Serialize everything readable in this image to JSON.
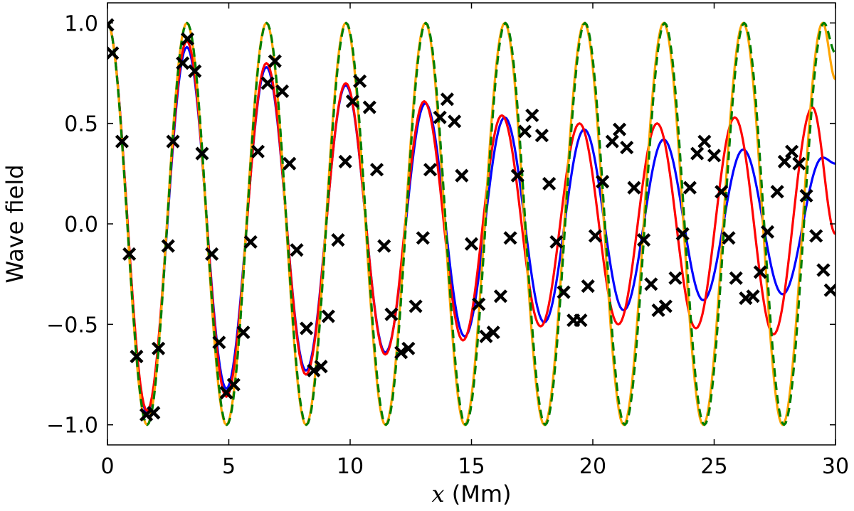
{
  "chart_data": {
    "type": "line",
    "title": "",
    "xlabel_var": "x",
    "xlabel_unit": " (Mm)",
    "ylabel": "Wave field",
    "xlim": [
      0,
      30
    ],
    "ylim": [
      -1.1,
      1.1
    ],
    "xticks": [
      0,
      5,
      10,
      15,
      20,
      25,
      30
    ],
    "xtick_labels": [
      "0",
      "5",
      "10",
      "15",
      "20",
      "25",
      "30"
    ],
    "yticks": [
      -1.0,
      -0.5,
      0.0,
      0.5,
      1.0
    ],
    "ytick_labels": [
      "−1.0",
      "−0.5",
      "0.0",
      "0.5",
      "1.0"
    ],
    "grid": false,
    "legend": "none",
    "series": [
      {
        "color": "#0000ff",
        "style": "solid",
        "x": [
          0,
          1.63,
          3.27,
          4.9,
          6.55,
          8.18,
          9.82,
          11.45,
          13.1,
          14.72,
          16.37,
          18.0,
          19.65,
          21.27,
          22.92,
          24.55,
          26.2,
          27.82,
          29.47,
          30.0
        ],
        "y": [
          1.0,
          -0.94,
          0.88,
          -0.82,
          0.78,
          -0.73,
          0.69,
          -0.64,
          0.6,
          -0.56,
          0.53,
          -0.49,
          0.47,
          -0.43,
          0.42,
          -0.38,
          0.37,
          -0.35,
          0.33,
          0.3
        ]
      },
      {
        "color": "#ff0000",
        "style": "solid",
        "x": [
          0,
          1.63,
          3.27,
          4.9,
          6.55,
          8.18,
          9.82,
          11.45,
          13.05,
          14.65,
          16.25,
          17.85,
          19.45,
          21.05,
          22.65,
          24.25,
          25.85,
          27.45,
          29.05,
          30.0
        ],
        "y": [
          1.0,
          -0.93,
          0.91,
          -0.86,
          0.8,
          -0.75,
          0.7,
          -0.65,
          0.61,
          -0.58,
          0.54,
          -0.51,
          0.5,
          -0.5,
          0.5,
          -0.52,
          0.53,
          -0.55,
          0.58,
          -0.05
        ]
      },
      {
        "color": "#ffa500",
        "style": "solid",
        "x": [
          0,
          1.63,
          3.27,
          4.9,
          6.55,
          8.18,
          9.82,
          11.45,
          13.1,
          14.72,
          16.37,
          18.0,
          19.65,
          21.27,
          22.92,
          24.55,
          26.2,
          27.82,
          29.47,
          30.0
        ],
        "y": [
          1.0,
          -1.0,
          1.0,
          -1.0,
          1.0,
          -1.0,
          1.0,
          -1.0,
          1.0,
          -1.0,
          1.0,
          -1.0,
          1.0,
          -1.0,
          1.0,
          -1.0,
          1.0,
          -1.0,
          1.0,
          0.72
        ]
      },
      {
        "color": "#007f00",
        "style": "dashed",
        "x": [
          0,
          1.64,
          3.28,
          4.92,
          6.56,
          8.2,
          9.84,
          11.48,
          13.12,
          14.76,
          16.4,
          18.04,
          19.68,
          21.32,
          22.96,
          24.6,
          26.24,
          27.88,
          29.52,
          30.0
        ],
        "y": [
          1.0,
          -1.0,
          1.0,
          -1.0,
          1.0,
          -1.0,
          1.0,
          -1.0,
          1.0,
          -1.0,
          1.0,
          -1.0,
          1.0,
          -1.0,
          1.0,
          -1.0,
          1.0,
          -1.0,
          1.0,
          0.85
        ]
      }
    ],
    "markers": {
      "symbol": "x",
      "color": "#000000",
      "x": [
        0.0,
        0.2,
        0.6,
        0.9,
        1.2,
        1.6,
        1.9,
        2.1,
        2.5,
        2.7,
        3.1,
        3.3,
        3.6,
        3.9,
        4.3,
        4.6,
        4.9,
        5.2,
        5.6,
        5.9,
        6.2,
        6.6,
        6.9,
        7.2,
        7.5,
        7.8,
        8.2,
        8.5,
        8.8,
        9.1,
        9.5,
        9.8,
        10.1,
        10.4,
        10.8,
        11.1,
        11.4,
        11.7,
        12.1,
        12.4,
        12.7,
        13.0,
        13.3,
        13.7,
        14.0,
        14.3,
        14.6,
        15.0,
        15.3,
        15.6,
        15.9,
        16.2,
        16.6,
        16.9,
        17.2,
        17.5,
        17.9,
        18.2,
        18.5,
        18.8,
        19.2,
        19.5,
        19.8,
        20.1,
        20.4,
        20.8,
        21.1,
        21.4,
        21.7,
        22.1,
        22.4,
        22.7,
        23.0,
        23.4,
        23.7,
        24.0,
        24.3,
        24.6,
        25.0,
        25.3,
        25.6,
        25.9,
        26.3,
        26.6,
        26.9,
        27.2,
        27.6,
        27.9,
        28.2,
        28.5,
        28.8,
        29.2,
        29.5,
        29.8
      ],
      "y": [
        0.99,
        0.85,
        0.41,
        -0.15,
        -0.66,
        -0.95,
        -0.94,
        -0.62,
        -0.11,
        0.41,
        0.8,
        0.92,
        0.76,
        0.35,
        -0.15,
        -0.59,
        -0.84,
        -0.8,
        -0.54,
        -0.09,
        0.36,
        0.7,
        0.81,
        0.66,
        0.3,
        -0.13,
        -0.52,
        -0.73,
        -0.71,
        -0.46,
        -0.08,
        0.31,
        0.61,
        0.71,
        0.58,
        0.27,
        -0.11,
        -0.45,
        -0.64,
        -0.62,
        -0.41,
        -0.07,
        0.27,
        0.53,
        0.62,
        0.51,
        0.24,
        -0.1,
        -0.4,
        -0.56,
        -0.54,
        -0.36,
        -0.07,
        0.24,
        0.46,
        0.54,
        0.44,
        0.2,
        -0.09,
        -0.34,
        -0.48,
        -0.48,
        -0.31,
        -0.06,
        0.21,
        0.41,
        0.47,
        0.38,
        0.18,
        -0.08,
        -0.3,
        -0.43,
        -0.41,
        -0.27,
        -0.05,
        0.18,
        0.35,
        0.41,
        0.34,
        0.16,
        -0.07,
        -0.27,
        -0.37,
        -0.36,
        -0.24,
        -0.04,
        0.16,
        0.31,
        0.36,
        0.3,
        0.14,
        -0.06,
        -0.23,
        -0.33
      ]
    }
  }
}
